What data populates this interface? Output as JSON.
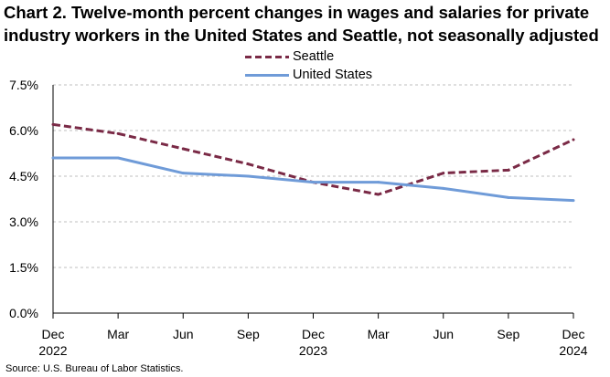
{
  "title_lines": [
    "Chart 2. Twelve-month percent changes in wages and salaries for private",
    "industry workers in the United States and Seattle, not seasonally adjusted"
  ],
  "source": "Source: U.S. Bureau of Labor Statistics.",
  "chart_data": {
    "type": "line",
    "title": "Chart 2. Twelve-month percent changes in wages and salaries for private industry workers in the United States and Seattle, not seasonally adjusted",
    "categories": [
      "Dec 2022",
      "Mar",
      "Jun",
      "Sep",
      "Dec 2023",
      "Mar",
      "Jun",
      "Sep",
      "Dec 2024"
    ],
    "x_tick_labels": [
      {
        "top": "Dec",
        "bottom": "2022"
      },
      {
        "top": "Mar",
        "bottom": ""
      },
      {
        "top": "Jun",
        "bottom": ""
      },
      {
        "top": "Sep",
        "bottom": ""
      },
      {
        "top": "Dec",
        "bottom": "2023"
      },
      {
        "top": "Mar",
        "bottom": ""
      },
      {
        "top": "Jun",
        "bottom": ""
      },
      {
        "top": "Sep",
        "bottom": ""
      },
      {
        "top": "Dec",
        "bottom": "2024"
      }
    ],
    "y_ticks": [
      0,
      1.5,
      3.0,
      4.5,
      6.0,
      7.5
    ],
    "y_tick_labels": [
      "0.0%",
      "1.5%",
      "3.0%",
      "4.5%",
      "6.0%",
      "7.5%"
    ],
    "ylim": [
      0,
      7.5
    ],
    "series": [
      {
        "name": "Seattle",
        "color": "#7a2a46",
        "style": "dashed",
        "values": [
          6.2,
          5.9,
          5.4,
          4.9,
          4.3,
          3.9,
          4.6,
          4.7,
          5.7
        ]
      },
      {
        "name": "United States",
        "color": "#6f9bd8",
        "style": "solid",
        "values": [
          5.1,
          5.1,
          4.6,
          4.5,
          4.3,
          4.3,
          4.1,
          3.8,
          3.7
        ]
      }
    ],
    "legend_position": "top-center",
    "grid": "horizontal dashed"
  }
}
